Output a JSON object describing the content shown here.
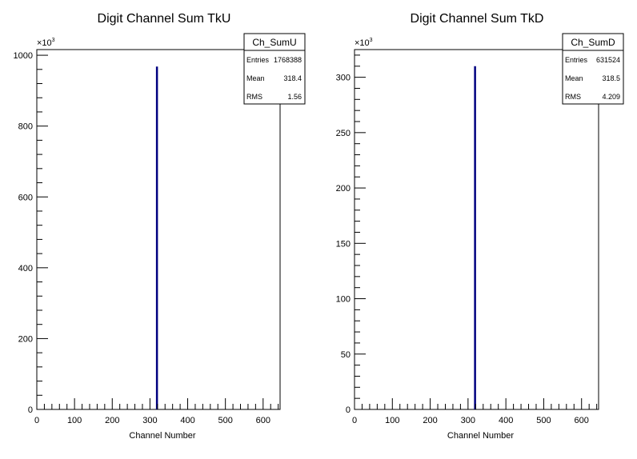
{
  "chart_data": [
    {
      "type": "bar",
      "title": "Digit Channel Sum TkU",
      "xlabel": "Channel Number",
      "ylabel": "",
      "y_multiplier": "×10",
      "y_multiplier_exp": "3",
      "xlim": [
        0,
        645
      ],
      "ylim": [
        0,
        1016
      ],
      "x_ticks": [
        0,
        100,
        200,
        300,
        400,
        500,
        600
      ],
      "y_ticks": [
        0,
        200,
        400,
        600,
        800,
        1000
      ],
      "bars": [
        {
          "x": 318,
          "value": 968
        }
      ],
      "bar_color": "#000080",
      "stats": {
        "name": "Ch_SumU",
        "rows": [
          {
            "label": "Entries",
            "value": "1768388"
          },
          {
            "label": "Mean",
            "value": "318.4"
          },
          {
            "label": "RMS",
            "value": "1.56"
          }
        ]
      }
    },
    {
      "type": "bar",
      "title": "Digit Channel Sum TkD",
      "xlabel": "Channel Number",
      "ylabel": "",
      "y_multiplier": "×10",
      "y_multiplier_exp": "3",
      "xlim": [
        0,
        645
      ],
      "ylim": [
        0,
        325
      ],
      "x_ticks": [
        0,
        100,
        200,
        300,
        400,
        500,
        600
      ],
      "y_ticks": [
        0,
        50,
        100,
        150,
        200,
        250,
        300
      ],
      "bars": [
        {
          "x": 318,
          "value": 310
        }
      ],
      "bar_color": "#000080",
      "stats": {
        "name": "Ch_SumD",
        "rows": [
          {
            "label": "Entries",
            "value": "631524"
          },
          {
            "label": "Mean",
            "value": "318.5"
          },
          {
            "label": "RMS",
            "value": "4.209"
          }
        ]
      }
    }
  ]
}
